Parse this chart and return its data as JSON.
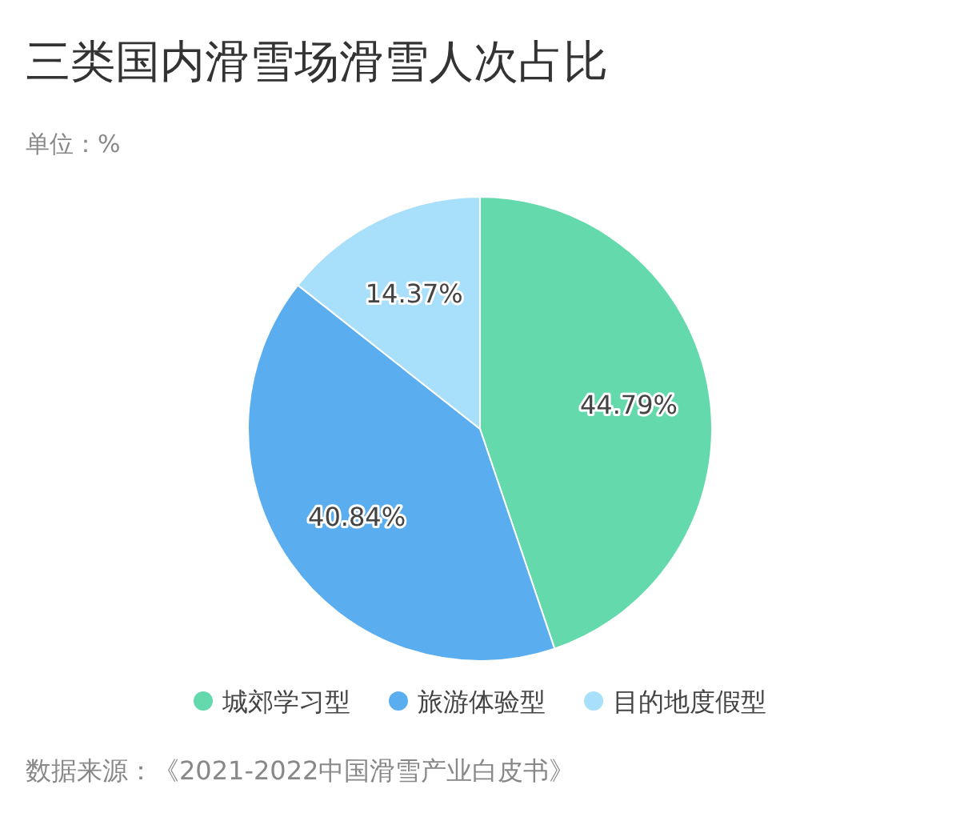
{
  "chart_data": {
    "type": "pie",
    "title": "三类国内滑雪场滑雪人次占比",
    "subtitle": "单位：%",
    "categories": [
      "城郊学习型",
      "旅游体验型",
      "目的地度假型"
    ],
    "values": [
      44.79,
      40.84,
      14.37
    ],
    "colors": [
      "#64d9ac",
      "#5aaef0",
      "#a8dffa"
    ],
    "value_labels": [
      "44.79%",
      "40.84%",
      "14.37%"
    ],
    "legend": "bottom",
    "annotations": [
      "数据来源：《2021-2022中国滑雪产业白皮书》"
    ]
  }
}
